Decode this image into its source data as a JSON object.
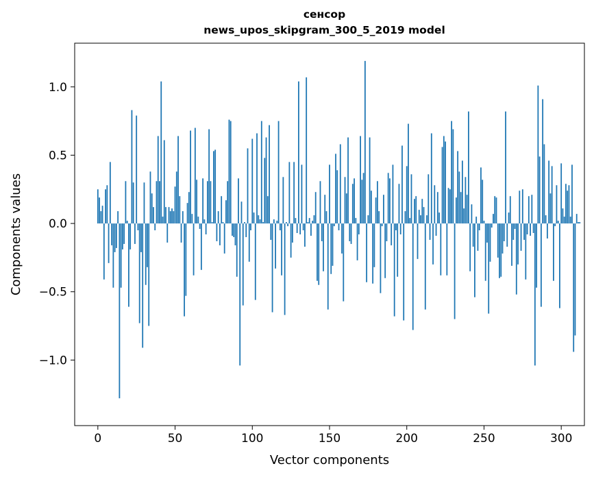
{
  "chart_data": {
    "type": "bar",
    "title_line1": "сенсор",
    "title_line2": "news_upos_skipgram_300_5_2019 model",
    "xlabel": "Vector components",
    "ylabel": "Components values",
    "xlim": [
      -15,
      315
    ],
    "ylim": [
      -1.48,
      1.32
    ],
    "xticks": [
      0,
      50,
      100,
      150,
      200,
      250,
      300
    ],
    "xtick_labels": [
      "0",
      "50",
      "100",
      "150",
      "200",
      "250",
      "300"
    ],
    "yticks": [
      -1.0,
      -0.5,
      0.0,
      0.5,
      1.0
    ],
    "ytick_labels": [
      "−1.0",
      "−0.5",
      "0.0",
      "0.5",
      "1.0"
    ],
    "grid": false,
    "bar_color": "#1f77b4",
    "values": [
      0.25,
      0.19,
      0.09,
      0.13,
      -0.41,
      0.25,
      0.28,
      -0.29,
      0.45,
      -0.16,
      -0.47,
      -0.21,
      -0.18,
      0.09,
      -1.28,
      -0.47,
      -0.19,
      -0.15,
      0.31,
      0.02,
      -0.61,
      -0.19,
      0.83,
      0.3,
      -0.15,
      0.79,
      -0.05,
      -0.73,
      -0.21,
      -0.91,
      0.3,
      -0.45,
      -0.32,
      -0.75,
      0.38,
      0.22,
      0.12,
      -0.05,
      0.31,
      0.64,
      0.31,
      1.04,
      0.05,
      0.61,
      0.12,
      -0.14,
      0.12,
      0.09,
      0.11,
      0.09,
      0.27,
      0.38,
      0.64,
      0.2,
      -0.14,
      0.09,
      -0.68,
      -0.53,
      0.15,
      0.23,
      0.68,
      0.07,
      -0.38,
      0.7,
      0.32,
      0.05,
      -0.04,
      -0.34,
      0.33,
      0.03,
      -0.08,
      0.31,
      0.69,
      0.31,
      0.01,
      0.53,
      0.54,
      -0.13,
      0.09,
      -0.16,
      0.2,
      0.01,
      -0.22,
      0.17,
      0.31,
      0.76,
      0.75,
      -0.09,
      -0.1,
      -0.16,
      -0.39,
      0.33,
      -1.04,
      0.16,
      -0.6,
      0.01,
      -0.1,
      0.55,
      -0.28,
      -0.05,
      0.62,
      0.08,
      -0.56,
      0.66,
      0.06,
      0.03,
      0.75,
      0.01,
      0.48,
      0.63,
      0.2,
      0.72,
      -0.12,
      -0.65,
      0.03,
      -0.33,
      0.02,
      0.75,
      -0.05,
      -0.38,
      0.34,
      -0.67,
      0.01,
      -0.02,
      0.45,
      -0.25,
      -0.14,
      0.45,
      0.04,
      -0.07,
      1.04,
      -0.08,
      0.43,
      -0.05,
      -0.17,
      1.07,
      0.01,
      0.04,
      -0.09,
      0.02,
      0.06,
      0.23,
      -0.42,
      -0.45,
      0.31,
      -0.13,
      -0.35,
      0.21,
      0.09,
      -0.63,
      0.43,
      -0.37,
      -0.31,
      -0.02,
      0.51,
      0.39,
      -0.05,
      0.58,
      -0.22,
      -0.57,
      0.34,
      0.22,
      0.63,
      -0.13,
      -0.15,
      0.29,
      0.33,
      0.04,
      -0.27,
      -0.08,
      0.64,
      0.32,
      0.37,
      1.19,
      -0.43,
      0.06,
      0.63,
      0.24,
      -0.44,
      -0.32,
      0.19,
      0.31,
      0.09,
      -0.51,
      -0.02,
      0.21,
      -0.4,
      -0.13,
      0.37,
      0.33,
      -0.16,
      0.43,
      -0.68,
      -0.05,
      -0.39,
      0.29,
      -0.08,
      0.57,
      -0.71,
      0.09,
      0.42,
      0.73,
      0.04,
      0.36,
      -0.78,
      0.18,
      0.2,
      -0.26,
      0.1,
      0.06,
      0.18,
      0.12,
      -0.63,
      0.06,
      0.36,
      -0.12,
      0.66,
      -0.3,
      0.28,
      -0.09,
      0.23,
      0.08,
      -0.38,
      0.56,
      0.64,
      0.6,
      -0.38,
      0.26,
      0.25,
      0.75,
      0.69,
      -0.7,
      0.19,
      0.53,
      0.38,
      0.23,
      0.46,
      0.11,
      0.34,
      0.21,
      0.82,
      -0.35,
      0.14,
      -0.17,
      -0.54,
      0.05,
      -0.2,
      -0.05,
      0.41,
      0.32,
      0.02,
      -0.42,
      -0.14,
      -0.66,
      -0.28,
      -0.03,
      0.07,
      0.2,
      0.19,
      -0.25,
      -0.4,
      -0.39,
      -0.22,
      -0.13,
      0.82,
      -0.17,
      0.08,
      0.2,
      -0.31,
      -0.12,
      -0.04,
      -0.52,
      -0.3,
      0.24,
      -0.2,
      0.25,
      -0.12,
      -0.41,
      -0.08,
      0.2,
      -0.09,
      0.21,
      -0.07,
      -1.04,
      -0.47,
      1.01,
      0.49,
      -0.61,
      0.91,
      0.58,
      0.06,
      -0.11,
      0.46,
      0.22,
      0.42,
      -0.42,
      -0.02,
      0.28,
      0.02,
      -0.62,
      0.44,
      0.11,
      0.05,
      0.29,
      0.24,
      0.28,
      0.05,
      0.43,
      -0.94,
      -0.82,
      0.07,
      0.01,
      0.01
    ],
    "reference_line": 0
  }
}
